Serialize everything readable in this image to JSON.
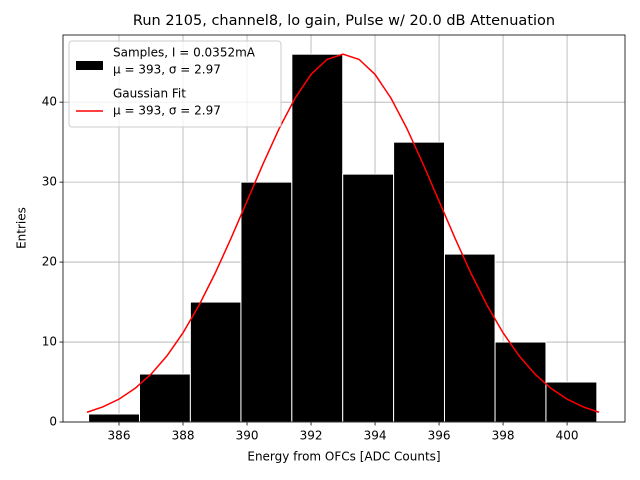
{
  "chart_data": {
    "type": "histogram",
    "title": "Run 2105, channel8, lo gain, Pulse w/ 20.0 dB Attenuation",
    "x_label": "Energy from OFCs [ADC Counts]",
    "y_label": "Entries",
    "bins": [
      385.05,
      386.64,
      388.23,
      389.81,
      391.4,
      392.99,
      394.58,
      396.17,
      397.75,
      399.34,
      400.93
    ],
    "series": [
      {
        "name": "Samples, I = 0.0352mA",
        "stats": "μ = 393, σ = 2.97",
        "color": "#000000",
        "values": [
          1,
          6,
          15,
          30,
          46,
          31,
          35,
          21,
          10,
          5
        ]
      }
    ],
    "fit": {
      "type": "line",
      "name": "Gaussian Fit",
      "stats": "μ = 393, σ = 2.97",
      "color": "#ff0000",
      "x": [
        385,
        385.5,
        386,
        386.5,
        387,
        387.5,
        388,
        388.5,
        389,
        389.5,
        390,
        390.5,
        391,
        391.5,
        392,
        392.5,
        393,
        393.5,
        394,
        394.5,
        395,
        395.5,
        396,
        396.5,
        397,
        397.5,
        398,
        398.5,
        399,
        399.5,
        400,
        400.5,
        401
      ],
      "values": [
        1.22,
        1.9,
        2.86,
        4.2,
        5.98,
        8.28,
        11.15,
        14.6,
        18.57,
        22.97,
        27.62,
        32.28,
        36.67,
        40.49,
        43.47,
        45.35,
        46,
        45.35,
        43.47,
        40.49,
        36.67,
        32.28,
        27.62,
        22.97,
        18.57,
        14.6,
        11.15,
        8.28,
        5.98,
        4.2,
        2.86,
        1.9,
        1.22
      ]
    },
    "xlim": [
      384.25,
      401.81
    ],
    "ylim": [
      0,
      48.4
    ],
    "xticks": [
      386,
      388,
      390,
      392,
      394,
      396,
      398,
      400
    ],
    "yticks": [
      0,
      10,
      20,
      30,
      40
    ],
    "grid": true,
    "legend": "upper left"
  }
}
